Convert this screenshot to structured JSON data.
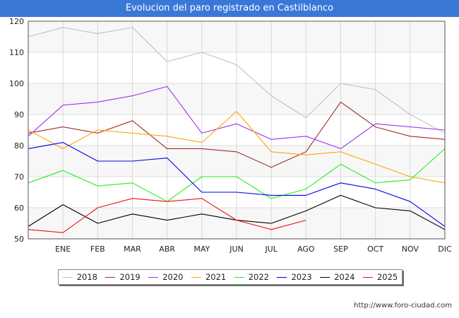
{
  "header": {
    "title": "Evolucion del paro registrado en Castilblanco"
  },
  "footer": {
    "url": "http://www.foro-ciudad.com"
  },
  "chart_data": {
    "type": "line",
    "title": "Evolucion del paro registrado en Castilblanco",
    "xlabel": "",
    "ylabel": "",
    "ylim": [
      50,
      120
    ],
    "yticks": [
      50,
      60,
      70,
      80,
      90,
      100,
      110,
      120
    ],
    "categories": [
      "",
      "ENE",
      "FEB",
      "MAR",
      "ABR",
      "MAY",
      "JUN",
      "JUL",
      "AGO",
      "SEP",
      "OCT",
      "NOV",
      "DIC"
    ],
    "grid": true,
    "legend_position": "bottom",
    "series": [
      {
        "name": "2018",
        "color": "#c0c0c0",
        "values": [
          115,
          118,
          116,
          118,
          107,
          110,
          106,
          96,
          89,
          100,
          98,
          90,
          84
        ]
      },
      {
        "name": "2019",
        "color": "#a52a2a",
        "values": [
          84,
          86,
          84,
          88,
          79,
          79,
          78,
          73,
          78,
          94,
          86,
          83,
          82
        ]
      },
      {
        "name": "2020",
        "color": "#a030f0",
        "values": [
          83,
          93,
          94,
          96,
          99,
          84,
          87,
          82,
          83,
          79,
          87,
          86,
          85
        ]
      },
      {
        "name": "2021",
        "color": "#ffa500",
        "values": [
          85,
          79,
          85,
          84,
          83,
          81,
          91,
          78,
          77,
          78,
          74,
          70,
          68
        ]
      },
      {
        "name": "2022",
        "color": "#22ee22",
        "values": [
          68,
          72,
          67,
          68,
          62,
          70,
          70,
          63,
          66,
          74,
          68,
          69,
          79
        ]
      },
      {
        "name": "2023",
        "color": "#0000ee",
        "values": [
          79,
          81,
          75,
          75,
          76,
          65,
          65,
          64,
          64,
          68,
          66,
          62,
          54
        ]
      },
      {
        "name": "2024",
        "color": "#000000",
        "values": [
          54,
          61,
          55,
          58,
          56,
          58,
          56,
          55,
          59,
          64,
          60,
          59,
          53
        ]
      },
      {
        "name": "2025",
        "color": "#ee1111",
        "values": [
          53,
          52,
          60,
          63,
          62,
          63,
          56,
          53,
          56,
          null,
          null,
          null,
          null
        ]
      }
    ]
  }
}
